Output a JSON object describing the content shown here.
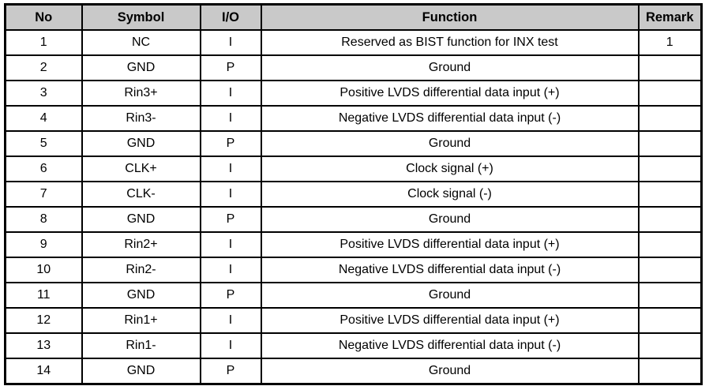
{
  "colors": {
    "header_bg": "#c9c9c9",
    "border": "#000000",
    "text": "#000000",
    "page_bg": "#ffffff"
  },
  "table": {
    "headers": [
      "No",
      "Symbol",
      "I/O",
      "Function",
      "Remark"
    ],
    "rows": [
      {
        "no": "1",
        "symbol": "NC",
        "io": "I",
        "function": "Reserved as BIST function for INX test",
        "remark": "1"
      },
      {
        "no": "2",
        "symbol": "GND",
        "io": "P",
        "function": "Ground",
        "remark": ""
      },
      {
        "no": "3",
        "symbol": "Rin3+",
        "io": "I",
        "function": "Positive LVDS differential data input (+)",
        "remark": ""
      },
      {
        "no": "4",
        "symbol": "Rin3-",
        "io": "I",
        "function": "Negative LVDS differential data input (-)",
        "remark": ""
      },
      {
        "no": "5",
        "symbol": "GND",
        "io": "P",
        "function": "Ground",
        "remark": ""
      },
      {
        "no": "6",
        "symbol": "CLK+",
        "io": "I",
        "function": "Clock signal (+)",
        "remark": ""
      },
      {
        "no": "7",
        "symbol": "CLK-",
        "io": "I",
        "function": "Clock signal (-)",
        "remark": ""
      },
      {
        "no": "8",
        "symbol": "GND",
        "io": "P",
        "function": "Ground",
        "remark": ""
      },
      {
        "no": "9",
        "symbol": "Rin2+",
        "io": "I",
        "function": "Positive LVDS differential data input (+)",
        "remark": ""
      },
      {
        "no": "10",
        "symbol": "Rin2-",
        "io": "I",
        "function": "Negative LVDS differential data input (-)",
        "remark": ""
      },
      {
        "no": "11",
        "symbol": "GND",
        "io": "P",
        "function": "Ground",
        "remark": ""
      },
      {
        "no": "12",
        "symbol": "Rin1+",
        "io": "I",
        "function": "Positive LVDS differential data input (+)",
        "remark": ""
      },
      {
        "no": "13",
        "symbol": "Rin1-",
        "io": "I",
        "function": "Negative LVDS differential data input (-)",
        "remark": ""
      },
      {
        "no": "14",
        "symbol": "GND",
        "io": "P",
        "function": "Ground",
        "remark": ""
      }
    ]
  }
}
